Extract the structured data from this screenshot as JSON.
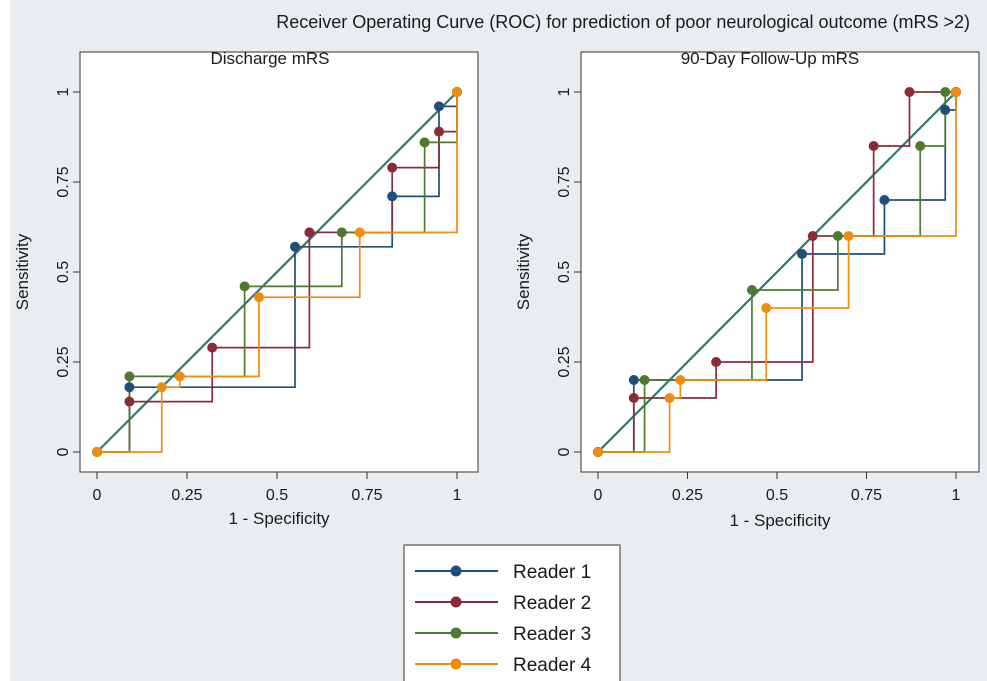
{
  "figure": {
    "title": "Receiver Operating Curve (ROC) for prediction of poor neurological outcome (mRS >2)"
  },
  "colors": {
    "reader1": "#1f4e79",
    "reader2": "#8b2b3a",
    "reader3": "#4e7a2e",
    "reader4": "#f08c10",
    "reference": "#2b7a6a"
  },
  "chart_data": [
    {
      "type": "line",
      "subtype": "roc-step",
      "title": "Discharge mRS",
      "xlabel": "1 - Specificity",
      "ylabel": "Sensitivity",
      "xlim": [
        0,
        1
      ],
      "ylim": [
        0,
        1
      ],
      "xticks": [
        "0",
        "0.25",
        "0.5",
        "0.75",
        "1"
      ],
      "yticks": [
        "0",
        "0.25",
        "0.5",
        "0.75",
        "1"
      ],
      "grid": false,
      "reference_line": [
        [
          0,
          0
        ],
        [
          1,
          1
        ]
      ],
      "series": [
        {
          "name": "Reader 1",
          "points": [
            [
              0,
              0
            ],
            [
              0.09,
              0.18
            ],
            [
              0.55,
              0.57
            ],
            [
              0.82,
              0.71
            ],
            [
              0.95,
              0.96
            ],
            [
              1,
              1
            ]
          ]
        },
        {
          "name": "Reader 2",
          "points": [
            [
              0,
              0
            ],
            [
              0.09,
              0.14
            ],
            [
              0.32,
              0.29
            ],
            [
              0.59,
              0.61
            ],
            [
              0.82,
              0.79
            ],
            [
              0.95,
              0.89
            ],
            [
              1,
              1
            ]
          ]
        },
        {
          "name": "Reader 3",
          "points": [
            [
              0,
              0
            ],
            [
              0.09,
              0.21
            ],
            [
              0.41,
              0.46
            ],
            [
              0.68,
              0.61
            ],
            [
              0.91,
              0.86
            ],
            [
              1,
              1
            ]
          ]
        },
        {
          "name": "Reader 4",
          "points": [
            [
              0,
              0
            ],
            [
              0.18,
              0.18
            ],
            [
              0.23,
              0.21
            ],
            [
              0.45,
              0.43
            ],
            [
              0.73,
              0.61
            ],
            [
              1,
              1
            ]
          ]
        }
      ]
    },
    {
      "type": "line",
      "subtype": "roc-step",
      "title": "90-Day Follow-Up mRS",
      "xlabel": "1 - Specificity",
      "ylabel": "Sensitivity",
      "xlim": [
        0,
        1
      ],
      "ylim": [
        0,
        1
      ],
      "xticks": [
        "0",
        "0.25",
        "0.5",
        "0.75",
        "1"
      ],
      "yticks": [
        "0",
        "0.25",
        "0.5",
        "0.75",
        "1"
      ],
      "grid": false,
      "reference_line": [
        [
          0,
          0
        ],
        [
          1,
          1
        ]
      ],
      "series": [
        {
          "name": "Reader 1",
          "points": [
            [
              0,
              0
            ],
            [
              0.1,
              0.2
            ],
            [
              0.57,
              0.55
            ],
            [
              0.8,
              0.7
            ],
            [
              0.97,
              0.95
            ],
            [
              1,
              1
            ]
          ]
        },
        {
          "name": "Reader 2",
          "points": [
            [
              0,
              0
            ],
            [
              0.1,
              0.15
            ],
            [
              0.33,
              0.25
            ],
            [
              0.6,
              0.6
            ],
            [
              0.77,
              0.85
            ],
            [
              0.87,
              1
            ],
            [
              1,
              1
            ]
          ]
        },
        {
          "name": "Reader 3",
          "points": [
            [
              0,
              0
            ],
            [
              0.13,
              0.2
            ],
            [
              0.43,
              0.45
            ],
            [
              0.67,
              0.6
            ],
            [
              0.9,
              0.85
            ],
            [
              0.97,
              1
            ],
            [
              1,
              1
            ]
          ]
        },
        {
          "name": "Reader 4",
          "points": [
            [
              0,
              0
            ],
            [
              0.2,
              0.15
            ],
            [
              0.23,
              0.2
            ],
            [
              0.47,
              0.4
            ],
            [
              0.7,
              0.6
            ],
            [
              1,
              1
            ]
          ]
        }
      ]
    }
  ],
  "legend": {
    "placement": "bottom-center",
    "items": [
      "Reader 1",
      "Reader 2",
      "Reader 3",
      "Reader 4"
    ]
  }
}
